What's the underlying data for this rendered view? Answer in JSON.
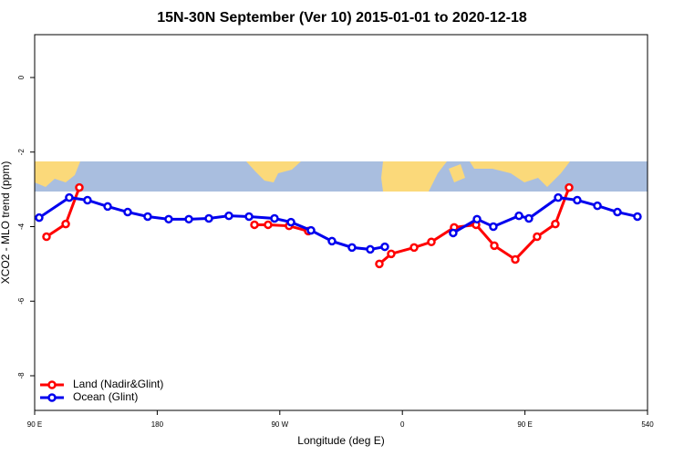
{
  "chart_data": {
    "type": "line",
    "title": "15N-30N September (Ver 10)   2015-01-01 to 2020-12-18",
    "xlabel": "Longitude (deg E)",
    "ylabel": "XCO2 - MLO trend (ppm)",
    "xlim": [
      90,
      540
    ],
    "ylim": [
      -8.93,
      1.15
    ],
    "xticks": [
      {
        "value": 90,
        "label": "90 E"
      },
      180,
      {
        "value": 270,
        "label": "90 W"
      },
      {
        "value": 360,
        "label": "0"
      },
      {
        "value": 450,
        "label": "90 E"
      },
      540
    ],
    "yticks": [
      -8,
      -6,
      -4,
      -2,
      0
    ],
    "legend": "bottom-left",
    "series": [
      {
        "name": "Land (Nadir&Glint)",
        "color": "#ff0000",
        "x": [
          98.7,
          112.8,
          122.8,
          null,
          251.4,
          261.4,
          276.8,
          290.9,
          null,
          343.1,
          351.8,
          368.6,
          381.3,
          398.0,
          414.1,
          427.5,
          442.9,
          458.9,
          472.3,
          482.4
        ],
        "values": [
          -4.27,
          -3.93,
          -2.95,
          null,
          -3.95,
          -3.95,
          -3.98,
          -4.12,
          null,
          -5.0,
          -4.73,
          -4.56,
          -4.41,
          -4.02,
          -3.95,
          -4.51,
          -4.88,
          -4.27,
          -3.93,
          -2.95
        ]
      },
      {
        "name": "Ocean (Glint)",
        "color": "#0000ee",
        "x": [
          93.3,
          115.4,
          128.8,
          143.6,
          158.3,
          173.0,
          188.4,
          203.2,
          217.9,
          232.6,
          247.4,
          266.1,
          278.2,
          292.9,
          308.3,
          323.0,
          336.4,
          347.1,
          null,
          397.3,
          414.8,
          426.8,
          445.6,
          452.9,
          474.4,
          488.4,
          503.2,
          517.9,
          532.6
        ],
        "values": [
          -3.76,
          -3.22,
          -3.29,
          -3.46,
          -3.61,
          -3.73,
          -3.8,
          -3.8,
          -3.78,
          -3.71,
          -3.73,
          -3.78,
          -3.88,
          -4.1,
          -4.39,
          -4.56,
          -4.61,
          -4.54,
          null,
          -4.17,
          -3.8,
          -4.0,
          -3.71,
          -3.78,
          -3.22,
          -3.29,
          -3.44,
          -3.61,
          -3.73
        ]
      }
    ]
  }
}
